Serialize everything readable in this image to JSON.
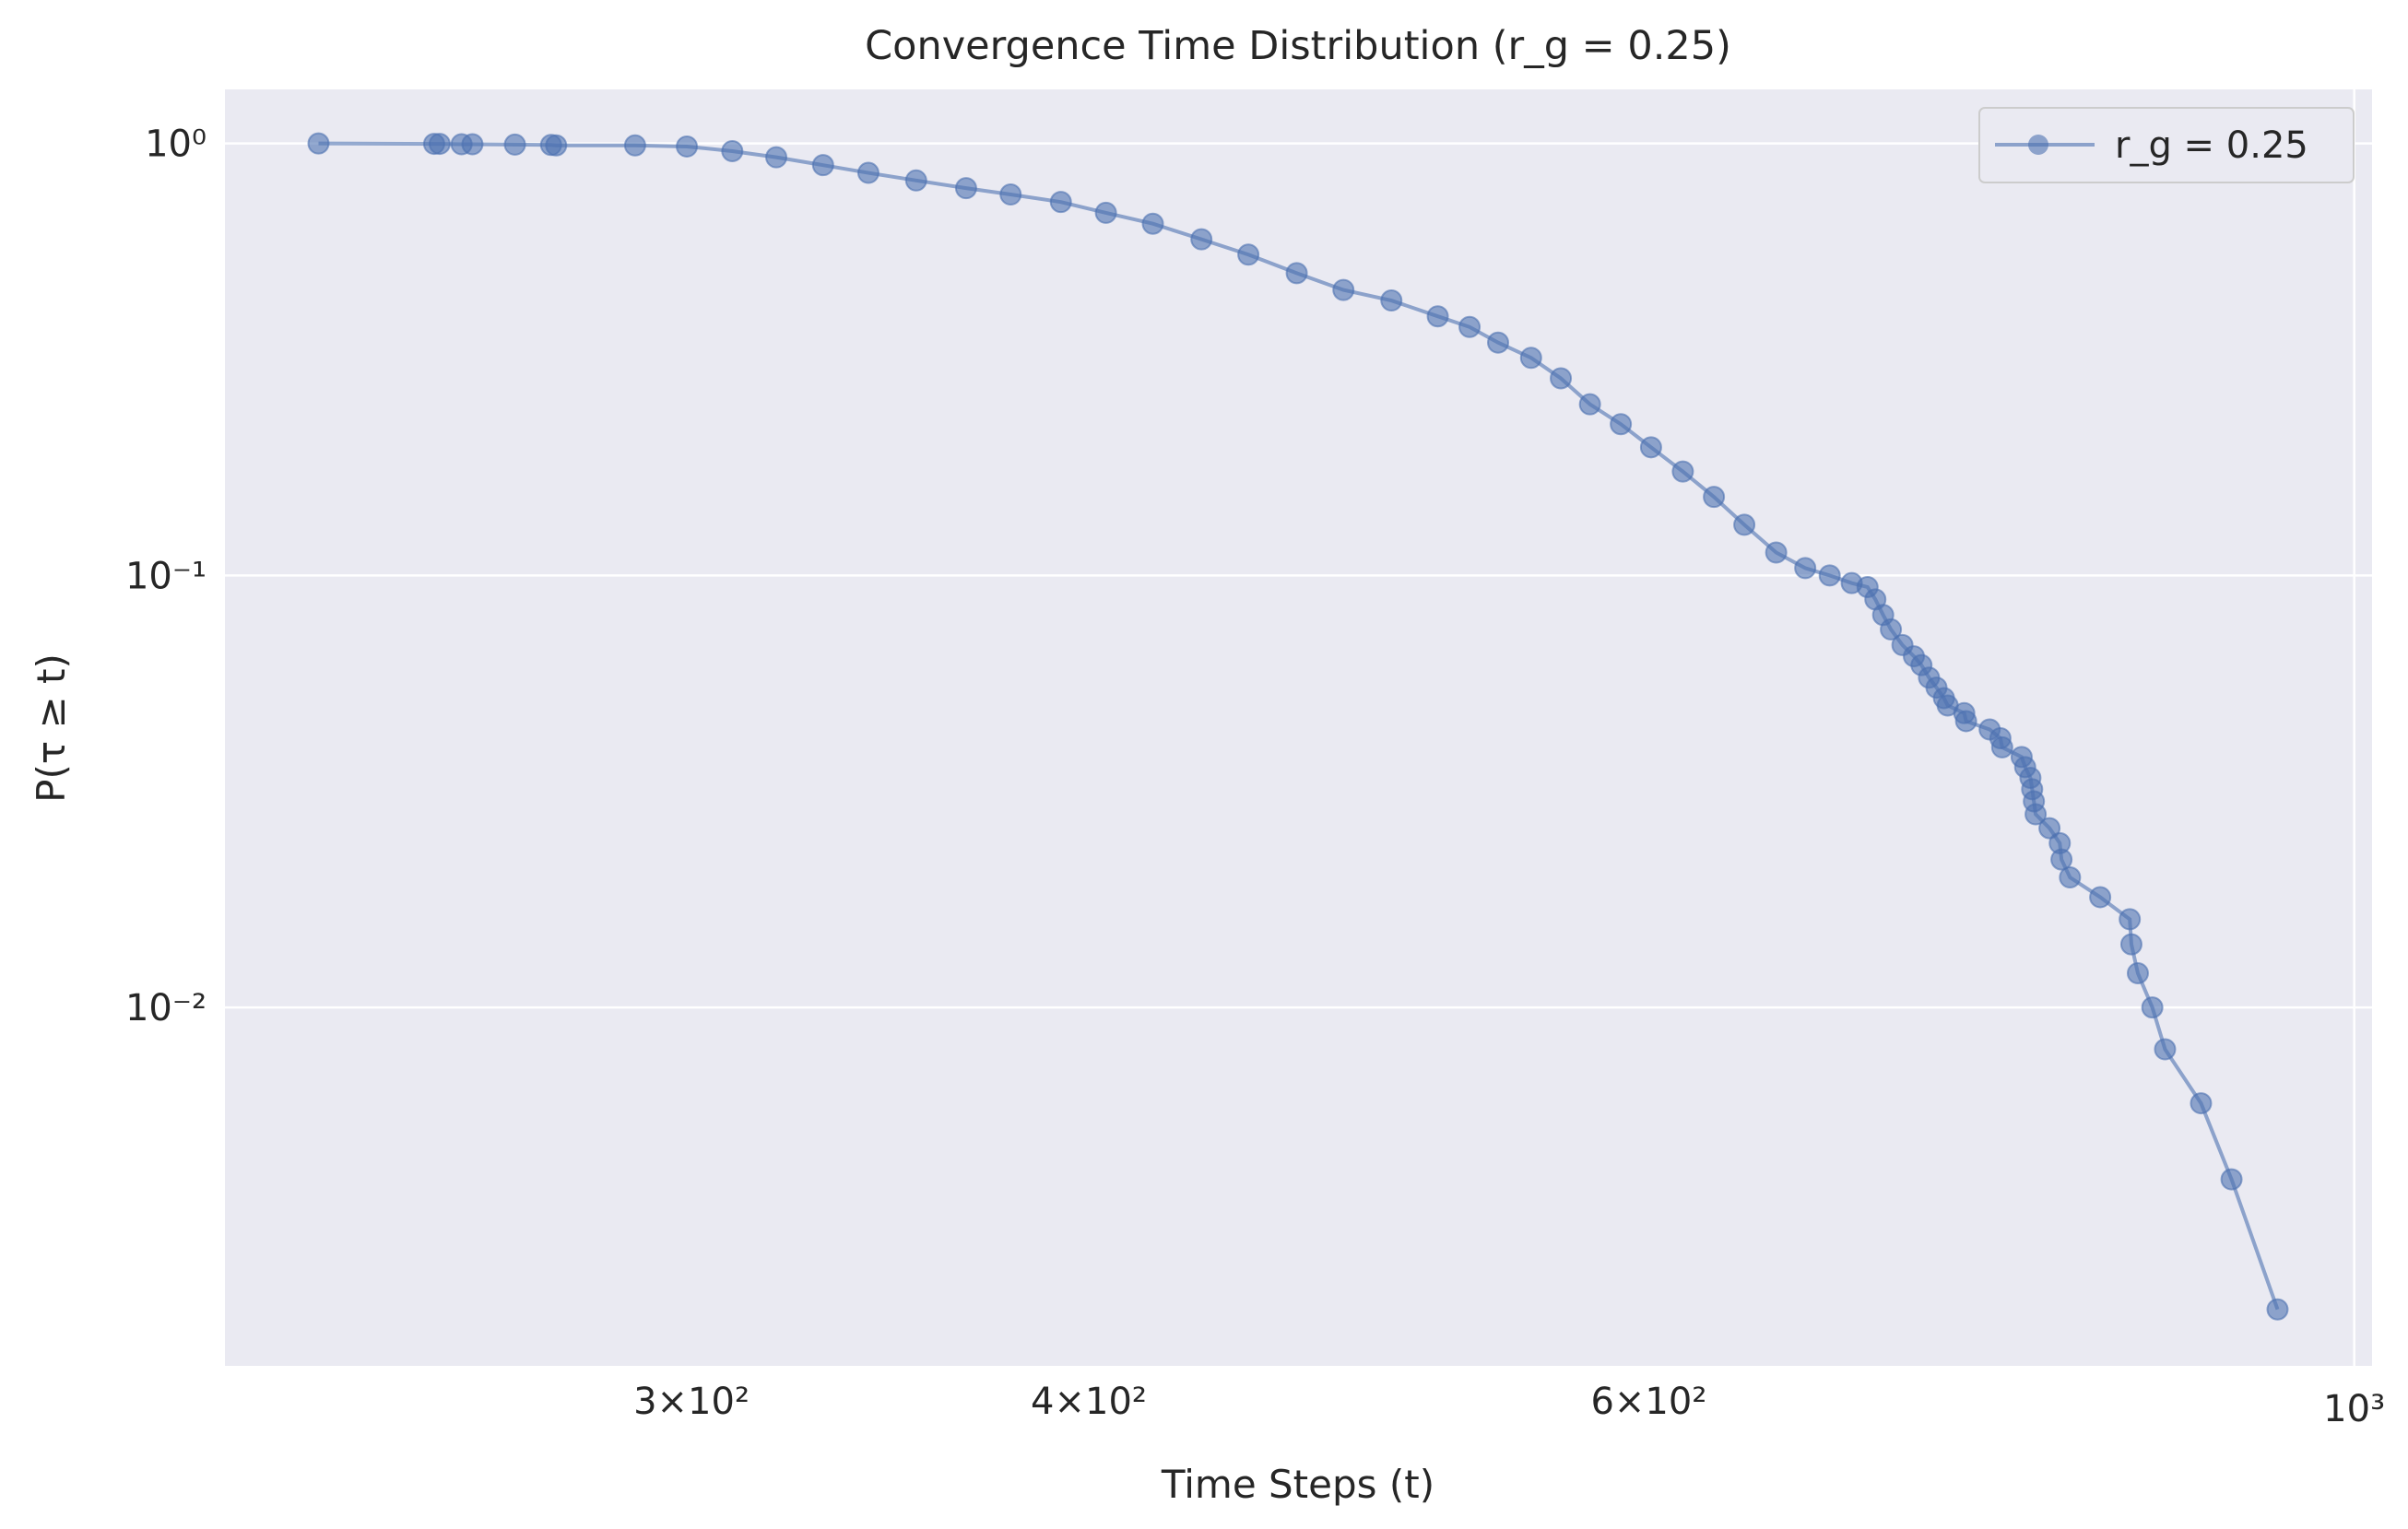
{
  "chart_data": {
    "type": "line",
    "title": "Convergence Time Distribution (r_g = 0.25)",
    "x_label": "Time Steps (t)",
    "y_label": "P(τ ≥ t)",
    "x": [
      229,
      249,
      250,
      254,
      256,
      264,
      271,
      272,
      288,
      299,
      309,
      319,
      330,
      341,
      353,
      366,
      378,
      392,
      405,
      419,
      434,
      449,
      465,
      481,
      498,
      515,
      527,
      538,
      551,
      563,
      575,
      588,
      601,
      615,
      629,
      643,
      658,
      672,
      684,
      695,
      703,
      707,
      711,
      715,
      721,
      727,
      731,
      735,
      739,
      743,
      745,
      754,
      755,
      768,
      774,
      775,
      786,
      788,
      791,
      792,
      793,
      794,
      802,
      808,
      809,
      814,
      832,
      850,
      851,
      855,
      864,
      872,
      895,
      915,
      946
    ],
    "series": [
      {
        "name": "r_g = 0.25",
        "color": "#4c72b0",
        "values": [
          1.0,
          0.998,
          0.998,
          0.996,
          0.996,
          0.994,
          0.992,
          0.99,
          0.99,
          0.984,
          0.96,
          0.929,
          0.891,
          0.855,
          0.821,
          0.788,
          0.762,
          0.732,
          0.691,
          0.652,
          0.6,
          0.553,
          0.501,
          0.458,
          0.433,
          0.398,
          0.376,
          0.346,
          0.319,
          0.286,
          0.249,
          0.224,
          0.198,
          0.174,
          0.152,
          0.131,
          0.113,
          0.104,
          0.1,
          0.096,
          0.094,
          0.088,
          0.081,
          0.075,
          0.069,
          0.065,
          0.062,
          0.058,
          0.055,
          0.052,
          0.05,
          0.048,
          0.046,
          0.044,
          0.042,
          0.04,
          0.038,
          0.036,
          0.034,
          0.032,
          0.03,
          0.028,
          0.026,
          0.024,
          0.022,
          0.02,
          0.018,
          0.016,
          0.014,
          0.012,
          0.01,
          0.008,
          0.006,
          0.004,
          0.002
        ]
      }
    ],
    "xlim": [
      214,
      1013
    ],
    "ylim": [
      0.00148,
      1.334
    ],
    "xscale": "log",
    "yscale": "log",
    "xticks": [
      {
        "value": 1000,
        "label": "10³"
      }
    ],
    "xminorticks": [
      {
        "value": 300,
        "label": "3×10²"
      },
      {
        "value": 400,
        "label": "4×10²"
      },
      {
        "value": 600,
        "label": "6×10²"
      }
    ],
    "yticks": [
      {
        "value": 1,
        "label": "10⁰"
      },
      {
        "value": 0.1,
        "label": "10⁻¹"
      },
      {
        "value": 0.01,
        "label": "10⁻²"
      }
    ],
    "grid": true,
    "legend": "upper right"
  }
}
